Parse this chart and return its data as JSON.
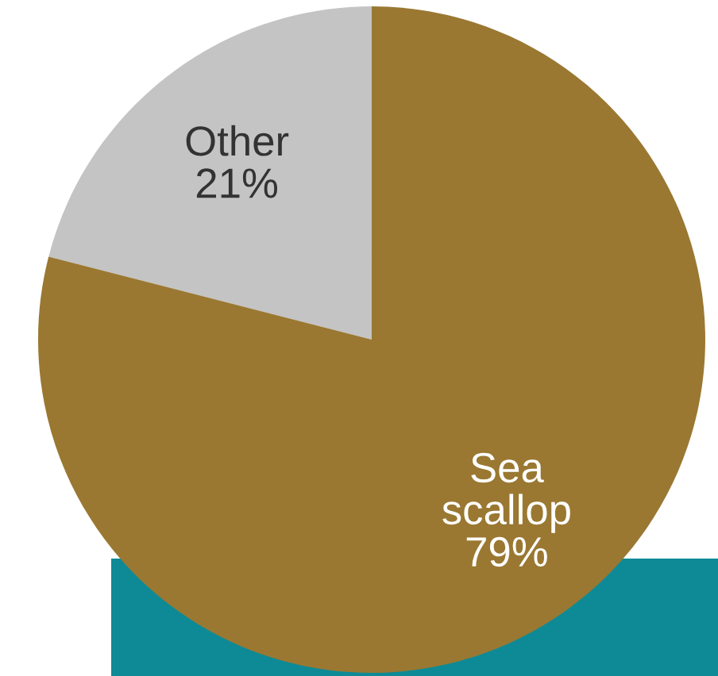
{
  "chart_data": {
    "type": "pie",
    "categories": [
      "Other",
      "Sea scallop"
    ],
    "values": [
      21,
      79
    ],
    "value_labels": [
      "21%",
      "79%"
    ],
    "colors": [
      "#c4c4c4",
      "#9a7832"
    ],
    "legend": false
  }
}
